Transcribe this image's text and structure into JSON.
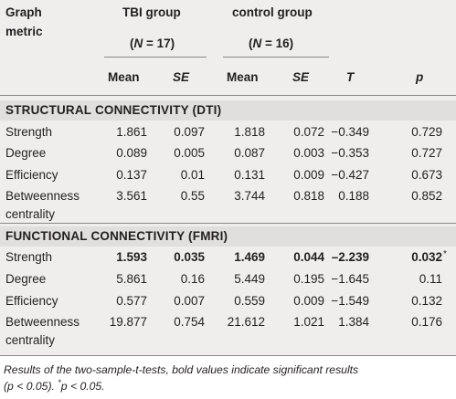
{
  "header": {
    "metric_label_line1": "Graph",
    "metric_label_line2": "metric",
    "group1_name": "TBI group",
    "group1_n_open": "(",
    "group1_n_label": "N",
    "group1_n_value": " = 17)",
    "group2_name": "control group",
    "group2_n_open": "(",
    "group2_n_label": "N",
    "group2_n_value": " = 16)",
    "col_mean1": "Mean",
    "col_se1": "SE",
    "col_mean2": "Mean",
    "col_se2": "SE",
    "col_t": "T",
    "col_p": "p"
  },
  "sections": [
    {
      "title": "STRUCTURAL CONNECTIVITY (DTI)",
      "rows": [
        {
          "metric": "Strength",
          "metric2": "",
          "mean1": "1.861",
          "se1": "0.097",
          "mean2": "1.818",
          "se2": "0.072",
          "t": "−0.349",
          "p": "0.729",
          "p_mark": "",
          "bold": false
        },
        {
          "metric": "Degree",
          "metric2": "",
          "mean1": "0.089",
          "se1": "0.005",
          "mean2": "0.087",
          "se2": "0.003",
          "t": "−0.353",
          "p": "0.727",
          "p_mark": "",
          "bold": false
        },
        {
          "metric": "Efficiency",
          "metric2": "",
          "mean1": "0.137",
          "se1": "0.01",
          "mean2": "0.131",
          "se2": "0.009",
          "t": "−0.427",
          "p": "0.673",
          "p_mark": "",
          "bold": false
        },
        {
          "metric": "Betweenness",
          "metric2": "centrality",
          "mean1": "3.561",
          "se1": "0.55",
          "mean2": "3.744",
          "se2": "0.818",
          "t": "0.188",
          "p": "0.852",
          "p_mark": "",
          "bold": false
        }
      ]
    },
    {
      "title": "FUNCTIONAL CONNECTIVITY (FMRI)",
      "rows": [
        {
          "metric": "Strength",
          "metric2": "",
          "mean1": "1.593",
          "se1": "0.035",
          "mean2": "1.469",
          "se2": "0.044",
          "t": "–2.239",
          "p": "0.032",
          "p_mark": "*",
          "bold": true
        },
        {
          "metric": "Degree",
          "metric2": "",
          "mean1": "5.861",
          "se1": "0.16",
          "mean2": "5.449",
          "se2": "0.195",
          "t": "−1.645",
          "p": "0.11",
          "p_mark": "",
          "bold": false
        },
        {
          "metric": "Efficiency",
          "metric2": "",
          "mean1": "0.577",
          "se1": "0.007",
          "mean2": "0.559",
          "se2": "0.009",
          "t": "−1.549",
          "p": "0.132",
          "p_mark": "",
          "bold": false
        },
        {
          "metric": "Betweenness",
          "metric2": "centrality",
          "mean1": "19.877",
          "se1": "0.754",
          "mean2": "21.612",
          "se2": "1.021",
          "t": "1.384",
          "p": "0.176",
          "p_mark": "",
          "bold": false
        }
      ]
    }
  ],
  "caption": {
    "line1": "Results of the two-sample-t-tests, bold values indicate significant results",
    "line2_a": "(p < 0.05). ",
    "line2_star": "*",
    "line2_b": "p < 0.05."
  }
}
